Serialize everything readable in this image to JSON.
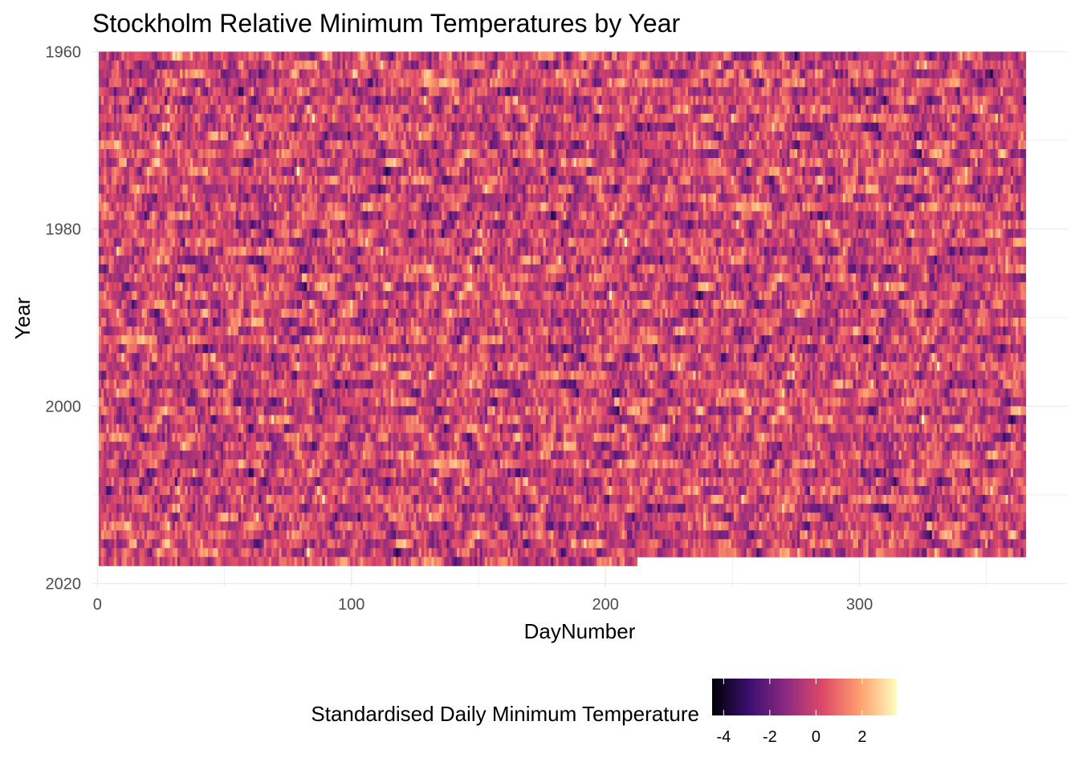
{
  "chart_data": {
    "type": "heatmap",
    "title": "Stockholm Relative Minimum Temperatures by Year",
    "xlabel": "DayNumber",
    "ylabel": "Year",
    "x_ticks": [
      0,
      100,
      200,
      300
    ],
    "y_ticks": [
      1960,
      1980,
      2000,
      2020
    ],
    "xlim": [
      0,
      365
    ],
    "ylim": [
      1960,
      2018
    ],
    "y_reversed": true,
    "year_range": [
      1960,
      2017
    ],
    "last_year_last_day": 212,
    "grid": true,
    "legend": {
      "title": "Standardised Daily Minimum Temperature",
      "position": "bottom",
      "ticks": [
        -4,
        -2,
        0,
        2
      ],
      "range": [
        -4.5,
        3.5
      ],
      "colors": [
        "#000004",
        "#3b0f70",
        "#8c2981",
        "#de4968",
        "#fe9f6d",
        "#fcfdbf"
      ]
    },
    "value_note": "standardised anomalies, roughly normally distributed around 0"
  }
}
